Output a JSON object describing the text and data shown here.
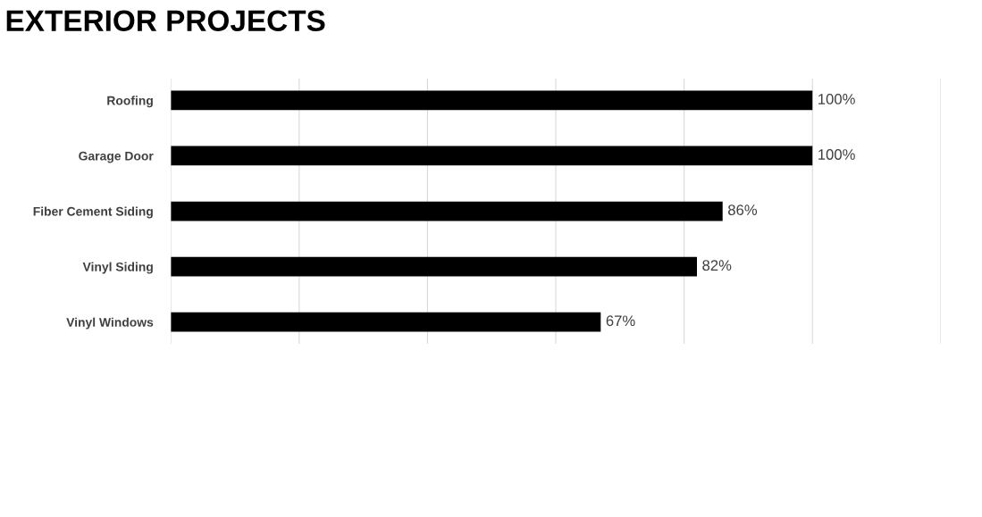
{
  "chart_data": {
    "type": "bar",
    "orientation": "horizontal",
    "title": "EXTERIOR PROJECTS",
    "categories": [
      "Roofing",
      "Garage Door",
      "Fiber Cement Siding",
      "Vinyl Siding",
      "Vinyl Windows"
    ],
    "values": [
      100,
      100,
      86,
      82,
      67
    ],
    "color": "#000000",
    "data_labels": true,
    "value_labels": [
      "100%",
      "100%",
      "86%",
      "82%",
      "67%"
    ],
    "xlim": [
      0,
      120
    ],
    "xticks": [
      {
        "value": 0,
        "label": null
      },
      {
        "value": 20,
        "label": null
      },
      {
        "value": 40,
        "label": null
      },
      {
        "value": 60,
        "label": null
      },
      {
        "value": 80,
        "label": null
      },
      {
        "value": 100,
        "label": null
      },
      {
        "value": 120,
        "label": null
      }
    ],
    "grid": "x",
    "tick_labels": "y",
    "legend": false
  }
}
